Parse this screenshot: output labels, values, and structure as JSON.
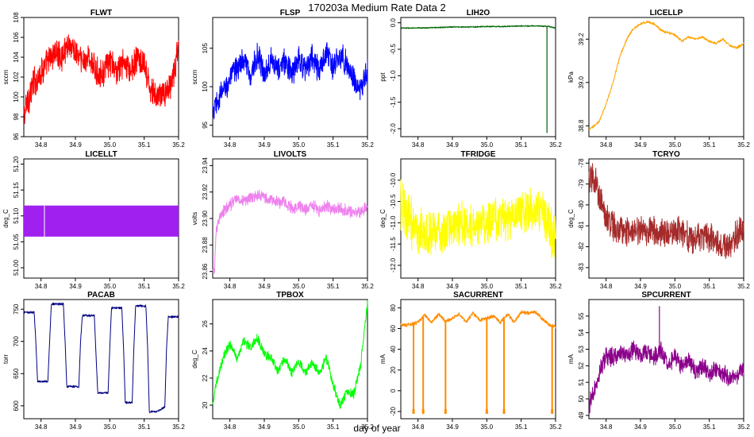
{
  "figure": {
    "title": "170203a   Medium Rate Data 2",
    "xlabel": "day of year"
  },
  "chart_data": [
    {
      "type": "line",
      "title": "FLWT",
      "ylabel": "sccm",
      "color": "#ff0000",
      "xlim": [
        34.75,
        35.2
      ],
      "ylim": [
        96,
        108
      ],
      "yticks": [
        96,
        98,
        100,
        102,
        104,
        106,
        108
      ],
      "xticks": [
        34.8,
        34.9,
        35.0,
        35.1,
        35.2
      ],
      "x": [
        34.75,
        34.76,
        34.78,
        34.8,
        34.82,
        34.84,
        34.86,
        34.88,
        34.9,
        34.92,
        34.94,
        34.96,
        34.98,
        35.0,
        35.02,
        35.04,
        35.06,
        35.08,
        35.1,
        35.12,
        35.14,
        35.16,
        35.18,
        35.2
      ],
      "y": [
        98,
        99.5,
        101.5,
        102.5,
        103.5,
        104.5,
        104,
        105.5,
        104.5,
        103.5,
        104,
        102.5,
        102.5,
        103.5,
        102.5,
        103.5,
        102.5,
        104,
        103,
        100.5,
        100,
        100.5,
        101,
        105
      ],
      "band": [
        2.5,
        3,
        3,
        2.5,
        2.5,
        2.5,
        2.5,
        2.5,
        2.5,
        2.5,
        2.5,
        2.5,
        2.5,
        2.5,
        2.5,
        2.5,
        2.5,
        2.5,
        2.5,
        2.5,
        2.5,
        2.5,
        2.5,
        3
      ],
      "rotate_ticks": false
    },
    {
      "type": "line",
      "title": "FLSP",
      "ylabel": "sccm",
      "color": "#0000ff",
      "xlim": [
        34.75,
        35.2
      ],
      "ylim": [
        93.5,
        109
      ],
      "yticks": [
        95,
        100,
        105
      ],
      "xticks": [
        34.8,
        34.9,
        35.0,
        35.1,
        35.2
      ],
      "x": [
        34.75,
        34.76,
        34.78,
        34.8,
        34.82,
        34.84,
        34.86,
        34.88,
        34.9,
        34.92,
        34.94,
        34.96,
        34.98,
        35.0,
        35.02,
        35.04,
        35.06,
        35.08,
        35.1,
        35.12,
        35.14,
        35.16,
        35.18,
        35.2
      ],
      "y": [
        96.5,
        97.5,
        99.5,
        101,
        102.5,
        103.5,
        101.5,
        104,
        101.5,
        104,
        102,
        103.5,
        101.5,
        104,
        102,
        104,
        102,
        104.5,
        102.5,
        104,
        103,
        101,
        99.5,
        102
      ],
      "band": [
        2.5,
        3,
        3,
        3,
        3,
        3,
        3,
        3,
        3,
        3,
        3,
        3,
        3,
        3,
        3,
        3,
        3,
        3,
        3,
        3,
        3,
        3,
        3,
        3
      ],
      "rotate_ticks": false
    },
    {
      "type": "line",
      "title": "LIH2O",
      "ylabel": "ppt",
      "color": "#006400",
      "xlim": [
        34.75,
        35.2
      ],
      "ylim": [
        -2.15,
        0.1
      ],
      "yticks": [
        -2.0,
        -1.5,
        -1.0,
        -0.5,
        0.0
      ],
      "ytick_labels": [
        "-2.0",
        "-1.5",
        "-1.0",
        "-0.5",
        "0.0"
      ],
      "xticks": [
        34.8,
        34.9,
        35.0,
        35.1,
        35.2
      ],
      "x": [
        34.75,
        34.8,
        34.85,
        34.9,
        34.95,
        35.0,
        35.05,
        35.1,
        35.15,
        35.18,
        35.2
      ],
      "y": [
        -0.1,
        -0.1,
        -0.09,
        -0.08,
        -0.08,
        -0.07,
        -0.07,
        -0.06,
        -0.06,
        -0.07,
        -0.1
      ],
      "band": [
        0.02,
        0.02,
        0.02,
        0.02,
        0.02,
        0.02,
        0.02,
        0.02,
        0.02,
        0.02,
        0.02
      ],
      "spike": {
        "x": 35.175,
        "y": -2.08
      },
      "rotate_ticks": true
    },
    {
      "type": "line",
      "title": "LICELLP",
      "ylabel": "kPa",
      "color": "#ffa500",
      "xlim": [
        34.75,
        35.2
      ],
      "ylim": [
        38.75,
        39.3
      ],
      "yticks": [
        38.8,
        39.0,
        39.2
      ],
      "ytick_labels": [
        "38.8",
        "39.0",
        "39.2"
      ],
      "xticks": [
        34.8,
        34.9,
        35.0,
        35.1,
        35.2
      ],
      "x": [
        34.75,
        34.78,
        34.8,
        34.82,
        34.84,
        34.86,
        34.88,
        34.9,
        34.92,
        34.94,
        34.96,
        34.98,
        35.0,
        35.02,
        35.04,
        35.06,
        35.08,
        35.1,
        35.12,
        35.14,
        35.16,
        35.18,
        35.2
      ],
      "y": [
        38.78,
        38.82,
        38.9,
        39.0,
        39.12,
        39.2,
        39.25,
        39.27,
        39.28,
        39.27,
        39.24,
        39.23,
        39.22,
        39.19,
        39.21,
        39.2,
        39.21,
        39.19,
        39.18,
        39.2,
        39.17,
        39.16,
        39.18
      ],
      "band": [
        0.01,
        0.01,
        0.01,
        0.01,
        0.01,
        0.01,
        0.01,
        0.01,
        0.01,
        0.01,
        0.01,
        0.01,
        0.01,
        0.01,
        0.01,
        0.01,
        0.01,
        0.01,
        0.01,
        0.01,
        0.01,
        0.01,
        0.01
      ],
      "rotate_ticks": true
    },
    {
      "type": "area",
      "title": "LICELLT",
      "ylabel": "deg_C",
      "color": "#a020f0",
      "xlim": [
        34.75,
        35.2
      ],
      "ylim": [
        50.98,
        51.21
      ],
      "yticks": [
        51.0,
        51.05,
        51.1,
        51.15,
        51.2
      ],
      "ytick_labels": [
        "51.00",
        "51.05",
        "51.10",
        "51.15",
        "51.20"
      ],
      "xticks": [
        34.8,
        34.9,
        35.0,
        35.1,
        35.2
      ],
      "x": [
        34.75,
        35.2
      ],
      "ymin": 51.06,
      "ymax": 51.12,
      "gap_x": 34.81,
      "rotate_ticks": true
    },
    {
      "type": "line",
      "title": "LIVOLTS",
      "ylabel": "volts",
      "color": "#ee82ee",
      "xlim": [
        34.75,
        35.2
      ],
      "ylim": [
        23.855,
        23.945
      ],
      "yticks": [
        23.86,
        23.88,
        23.9,
        23.92,
        23.94
      ],
      "ytick_labels": [
        "23.86",
        "23.88",
        "23.90",
        "23.92",
        "23.94"
      ],
      "xticks": [
        34.8,
        34.9,
        35.0,
        35.1,
        35.2
      ],
      "x": [
        34.75,
        34.755,
        34.76,
        34.77,
        34.78,
        34.8,
        34.82,
        34.84,
        34.86,
        34.88,
        34.9,
        34.92,
        34.94,
        34.96,
        34.98,
        35.0,
        35.02,
        35.04,
        35.06,
        35.08,
        35.1,
        35.12,
        35.14,
        35.16,
        35.18,
        35.2
      ],
      "y": [
        23.86,
        23.86,
        23.89,
        23.9,
        23.905,
        23.91,
        23.915,
        23.913,
        23.915,
        23.918,
        23.916,
        23.914,
        23.912,
        23.913,
        23.908,
        23.91,
        23.907,
        23.91,
        23.906,
        23.91,
        23.906,
        23.908,
        23.906,
        23.905,
        23.904,
        23.91
      ],
      "band": [
        0.004,
        0.004,
        0.006,
        0.008,
        0.008,
        0.008,
        0.008,
        0.008,
        0.008,
        0.008,
        0.008,
        0.008,
        0.008,
        0.008,
        0.008,
        0.008,
        0.008,
        0.008,
        0.008,
        0.008,
        0.008,
        0.008,
        0.008,
        0.008,
        0.008,
        0.008
      ],
      "rotate_ticks": true
    },
    {
      "type": "line",
      "title": "TFRIDGE",
      "ylabel": "deg_C",
      "color": "#ffff00",
      "xlim": [
        34.75,
        35.2
      ],
      "ylim": [
        -12.3,
        -9.5
      ],
      "yticks": [
        -12.0,
        -11.5,
        -11.0,
        -10.5,
        -10.0
      ],
      "ytick_labels": [
        "-12.0",
        "-11.5",
        "-11.0",
        "-10.5",
        "-10.0"
      ],
      "xticks": [
        34.8,
        34.9,
        35.0,
        35.1,
        35.2
      ],
      "x": [
        34.75,
        34.77,
        34.8,
        34.83,
        34.86,
        34.9,
        34.93,
        34.96,
        35.0,
        35.03,
        35.06,
        35.1,
        35.13,
        35.16,
        35.18,
        35.2
      ],
      "y": [
        -10.5,
        -10.9,
        -11.2,
        -11.3,
        -11.2,
        -11.1,
        -11.0,
        -11.1,
        -11.0,
        -10.9,
        -10.9,
        -10.8,
        -10.7,
        -10.7,
        -11.1,
        -11.5
      ],
      "band": [
        1.2,
        1.1,
        1.0,
        1.0,
        0.9,
        0.9,
        0.9,
        0.9,
        0.9,
        0.9,
        0.9,
        0.9,
        0.9,
        0.9,
        1.0,
        1.2
      ],
      "rotate_ticks": true
    },
    {
      "type": "line",
      "title": "TCRYO",
      "ylabel": "deg_C",
      "color": "#a52a2a",
      "xlim": [
        34.75,
        35.2
      ],
      "ylim": [
        -83.5,
        -77.8
      ],
      "yticks": [
        -83,
        -82,
        -81,
        -80,
        -79,
        -78
      ],
      "ytick_labels": [
        "-83",
        "-82",
        "-81",
        "-80",
        "-79",
        "-78"
      ],
      "xticks": [
        34.8,
        34.9,
        35.0,
        35.1,
        35.2
      ],
      "x": [
        34.75,
        34.76,
        34.77,
        34.78,
        34.8,
        34.83,
        34.86,
        34.9,
        34.93,
        34.96,
        35.0,
        35.03,
        35.06,
        35.1,
        35.13,
        35.16,
        35.18,
        35.2
      ],
      "y": [
        -79,
        -78.6,
        -79,
        -79.5,
        -80.6,
        -81.2,
        -81.3,
        -81.2,
        -81.2,
        -81.3,
        -81.2,
        -81.5,
        -81.5,
        -81.6,
        -81.8,
        -81.9,
        -81.5,
        -81.0
      ],
      "band": [
        1.4,
        1.4,
        1.4,
        1.4,
        1.2,
        1.2,
        1.2,
        1.2,
        1.2,
        1.2,
        1.3,
        1.3,
        1.3,
        1.3,
        1.3,
        1.3,
        1.3,
        1.3
      ],
      "rotate_ticks": true
    },
    {
      "type": "line",
      "title": "PACAB",
      "ylabel": "torr",
      "color": "#000080",
      "xlim": [
        34.75,
        35.2
      ],
      "ylim": [
        580,
        765
      ],
      "yticks": [
        600,
        650,
        700,
        750
      ],
      "xticks": [
        34.8,
        34.9,
        35.0,
        35.1,
        35.2
      ],
      "x": [
        34.75,
        34.78,
        34.785,
        34.79,
        34.82,
        34.825,
        34.83,
        34.865,
        34.87,
        34.875,
        34.91,
        34.915,
        34.92,
        34.955,
        34.96,
        34.965,
        34.995,
        35.0,
        35.005,
        35.035,
        35.04,
        35.045,
        35.065,
        35.07,
        35.075,
        35.105,
        35.11,
        35.115,
        35.14,
        35.16,
        35.165,
        35.17,
        35.2
      ],
      "y": [
        745,
        745,
        700,
        638,
        638,
        700,
        758,
        758,
        700,
        630,
        630,
        700,
        740,
        740,
        680,
        620,
        620,
        690,
        752,
        752,
        690,
        605,
        605,
        690,
        755,
        755,
        690,
        590,
        592,
        598,
        690,
        738,
        738
      ],
      "band": [
        3,
        3,
        3,
        3,
        3,
        3,
        3,
        3,
        3,
        3,
        3,
        3,
        3,
        3,
        3,
        3,
        3,
        3,
        3,
        3,
        3,
        3,
        3,
        3,
        3,
        3,
        3,
        3,
        3,
        3,
        3,
        3,
        3
      ],
      "rotate_ticks": false
    },
    {
      "type": "line",
      "title": "TPBOX",
      "ylabel": "deg_C",
      "color": "#00ff00",
      "xlim": [
        34.75,
        35.2
      ],
      "ylim": [
        19,
        27.8
      ],
      "yticks": [
        20,
        22,
        24,
        26
      ],
      "xticks": [
        34.8,
        34.9,
        35.0,
        35.1,
        35.2
      ],
      "x": [
        34.75,
        34.76,
        34.78,
        34.8,
        34.82,
        34.84,
        34.86,
        34.88,
        34.9,
        34.92,
        34.94,
        34.96,
        34.98,
        35.0,
        35.02,
        35.04,
        35.06,
        35.08,
        35.1,
        35.12,
        35.14,
        35.16,
        35.18,
        35.2
      ],
      "y": [
        20,
        21.5,
        23.5,
        24.5,
        23.5,
        24.8,
        24.2,
        25,
        23.8,
        23.5,
        22.5,
        23.5,
        22.3,
        23.3,
        22.3,
        23.2,
        22.3,
        23.5,
        21.5,
        20,
        21,
        20.8,
        23,
        27.5
      ],
      "band": [
        0.6,
        0.6,
        0.6,
        0.6,
        0.6,
        0.6,
        0.6,
        0.6,
        0.6,
        0.6,
        0.6,
        0.6,
        0.6,
        0.6,
        0.6,
        0.6,
        0.6,
        0.6,
        0.6,
        0.6,
        0.6,
        0.6,
        0.6,
        0.6
      ],
      "rotate_ticks": false
    },
    {
      "type": "line",
      "title": "SACURRENT",
      "ylabel": "mA",
      "color": "#ff8c00",
      "xlim": [
        34.75,
        35.2
      ],
      "ylim": [
        -27,
        88
      ],
      "yticks": [
        -20,
        0,
        20,
        40,
        60,
        80
      ],
      "xticks": [
        34.8,
        34.9,
        35.0,
        35.1,
        35.2
      ],
      "x": [
        34.75,
        34.78,
        34.8,
        34.82,
        34.84,
        34.86,
        34.88,
        34.9,
        34.92,
        34.94,
        34.96,
        34.98,
        35.0,
        35.02,
        35.04,
        35.06,
        35.08,
        35.1,
        35.12,
        35.14,
        35.16,
        35.18,
        35.2
      ],
      "y": [
        63,
        64,
        66,
        73,
        66,
        74,
        67,
        70,
        74,
        66,
        75,
        68,
        70,
        72,
        66,
        74,
        66,
        76,
        75,
        76,
        70,
        64,
        62
      ],
      "band": [
        3,
        3,
        3,
        3,
        3,
        3,
        3,
        3,
        3,
        3,
        3,
        3,
        3,
        3,
        3,
        3,
        3,
        3,
        3,
        3,
        3,
        3,
        3
      ],
      "dips": [
        34.787,
        34.815,
        34.88,
        35.0,
        35.05,
        35.19
      ],
      "dip_value": -20,
      "rotate_ticks": false
    },
    {
      "type": "line",
      "title": "SPCURRENT",
      "ylabel": "mA",
      "color": "#8b008b",
      "xlim": [
        34.75,
        35.2
      ],
      "ylim": [
        48.8,
        56
      ],
      "yticks": [
        49,
        50,
        51,
        52,
        53,
        54,
        55
      ],
      "xticks": [
        34.8,
        34.9,
        35.0,
        35.1,
        35.2
      ],
      "x": [
        34.75,
        34.76,
        34.78,
        34.8,
        34.82,
        34.84,
        34.86,
        34.88,
        34.9,
        34.92,
        34.94,
        34.96,
        34.98,
        35.0,
        35.02,
        35.04,
        35.06,
        35.08,
        35.1,
        35.12,
        35.14,
        35.16,
        35.18,
        35.2
      ],
      "y": [
        49.5,
        50.2,
        51.5,
        52.6,
        52.5,
        52.8,
        52.6,
        53.0,
        52.6,
        52.8,
        52.5,
        52.9,
        52.1,
        52.5,
        51.9,
        52.4,
        51.7,
        52.0,
        51.5,
        51.8,
        51.5,
        51.2,
        51.4,
        51.8
      ],
      "band": [
        1,
        1,
        1,
        1,
        1,
        1,
        1,
        1,
        1,
        1,
        1,
        1,
        1,
        1,
        1,
        1,
        1,
        1,
        1,
        1,
        1,
        1,
        1,
        1
      ],
      "spike": {
        "x": 34.955,
        "y": 55.6
      },
      "rotate_ticks": true
    }
  ]
}
